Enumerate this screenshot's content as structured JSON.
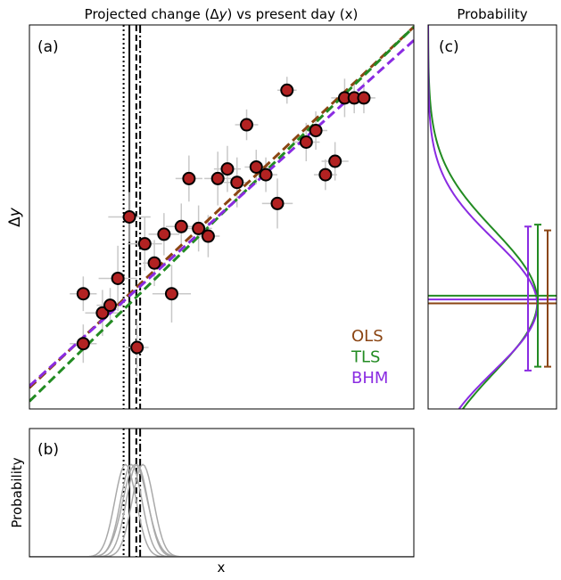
{
  "chart_data": [
    {
      "panel_id": "a",
      "panel_label": "(a)",
      "type": "scatter",
      "title": "Projected change (Δy) vs present day (x)",
      "title_prefix": "Projected change (",
      "title_delta": "Δ",
      "title_y": "y",
      "title_suffix": ") vs present day (x)",
      "ylabel_delta": "Δ",
      "ylabel_y": "y",
      "xlim": [
        0,
        10
      ],
      "ylim": [
        0,
        10
      ],
      "points": [
        {
          "x": 1.4,
          "y": 1.7,
          "xerr": 0.35,
          "yerr": 0.5
        },
        {
          "x": 1.9,
          "y": 2.5,
          "xerr": 0.45,
          "yerr": 0.6
        },
        {
          "x": 2.1,
          "y": 2.7,
          "xerr": 0.35,
          "yerr": 0.45
        },
        {
          "x": 1.4,
          "y": 3.0,
          "xerr": 0.35,
          "yerr": 0.45
        },
        {
          "x": 2.3,
          "y": 3.4,
          "xerr": 0.5,
          "yerr": 0.85
        },
        {
          "x": 2.8,
          "y": 1.6,
          "xerr": 0.3,
          "yerr": 0.75
        },
        {
          "x": 2.6,
          "y": 5.0,
          "xerr": 0.55,
          "yerr": 0.65
        },
        {
          "x": 3.0,
          "y": 4.3,
          "xerr": 0.45,
          "yerr": 0.7
        },
        {
          "x": 3.25,
          "y": 3.8,
          "xerr": 0.3,
          "yerr": 0.6
        },
        {
          "x": 3.5,
          "y": 4.55,
          "xerr": 0.4,
          "yerr": 0.55
        },
        {
          "x": 3.7,
          "y": 3.0,
          "xerr": 0.5,
          "yerr": 0.75
        },
        {
          "x": 3.95,
          "y": 4.75,
          "xerr": 0.4,
          "yerr": 0.6
        },
        {
          "x": 4.15,
          "y": 6.0,
          "xerr": 0.35,
          "yerr": 0.6
        },
        {
          "x": 4.4,
          "y": 4.7,
          "xerr": 0.35,
          "yerr": 0.6
        },
        {
          "x": 4.65,
          "y": 4.5,
          "xerr": 0.3,
          "yerr": 0.55
        },
        {
          "x": 4.9,
          "y": 6.0,
          "xerr": 0.35,
          "yerr": 0.7
        },
        {
          "x": 5.15,
          "y": 6.25,
          "xerr": 0.35,
          "yerr": 0.6
        },
        {
          "x": 5.4,
          "y": 5.9,
          "xerr": 0.35,
          "yerr": 0.65
        },
        {
          "x": 5.65,
          "y": 7.4,
          "xerr": 0.3,
          "yerr": 0.4
        },
        {
          "x": 5.9,
          "y": 6.3,
          "xerr": 0.3,
          "yerr": 0.45
        },
        {
          "x": 6.15,
          "y": 6.1,
          "xerr": 0.3,
          "yerr": 0.45
        },
        {
          "x": 6.45,
          "y": 5.35,
          "xerr": 0.4,
          "yerr": 0.65
        },
        {
          "x": 6.7,
          "y": 8.3,
          "xerr": 0.25,
          "yerr": 0.35
        },
        {
          "x": 7.2,
          "y": 6.95,
          "xerr": 0.35,
          "yerr": 0.5
        },
        {
          "x": 7.45,
          "y": 7.25,
          "xerr": 0.3,
          "yerr": 0.5
        },
        {
          "x": 7.7,
          "y": 6.1,
          "xerr": 0.3,
          "yerr": 0.4
        },
        {
          "x": 7.95,
          "y": 6.45,
          "xerr": 0.35,
          "yerr": 0.5
        },
        {
          "x": 8.2,
          "y": 8.1,
          "xerr": 0.35,
          "yerr": 0.5
        },
        {
          "x": 8.45,
          "y": 8.1,
          "xerr": 0.3,
          "yerr": 0.4
        },
        {
          "x": 8.7,
          "y": 8.1,
          "xerr": 0.3,
          "yerr": 0.4
        }
      ],
      "vertical_lines": [
        {
          "x": 2.45,
          "style": "dotted",
          "color": "#000000"
        },
        {
          "x": 2.6,
          "style": "solid",
          "color": "#000000"
        },
        {
          "x": 2.78,
          "style": "dashed",
          "color": "#000000"
        },
        {
          "x": 2.88,
          "style": "dashdot",
          "color": "#000000"
        }
      ],
      "fit_lines": [
        {
          "name": "OLS",
          "color": "#8B4513",
          "x": [
            0,
            10
          ],
          "y": [
            0.55,
            9.95
          ]
        },
        {
          "name": "TLS",
          "color": "#228B22",
          "x": [
            0,
            10
          ],
          "y": [
            0.2,
            9.95
          ]
        },
        {
          "name": "BHM",
          "color": "#8A2BE2",
          "x": [
            0,
            10
          ],
          "y": [
            0.6,
            9.6
          ]
        }
      ],
      "legend": [
        {
          "label": "OLS",
          "color": "#8B4513"
        },
        {
          "label": "TLS",
          "color": "#228B22"
        },
        {
          "label": "BHM",
          "color": "#8A2BE2"
        }
      ],
      "legend_position": "bottom-right",
      "colors": {
        "marker_fill": "#B22222",
        "marker_edge": "#000000",
        "errorbar": "#C8C8C8"
      },
      "grid": false
    },
    {
      "panel_id": "b",
      "panel_label": "(b)",
      "type": "line",
      "xlabel": "x",
      "ylabel": "Probability",
      "xlim": [
        0,
        10
      ],
      "ylim": [
        0,
        1
      ],
      "curves": [
        {
          "mean": 2.5,
          "sd": 0.28
        },
        {
          "mean": 2.65,
          "sd": 0.28
        },
        {
          "mean": 2.8,
          "sd": 0.28
        },
        {
          "mean": 2.95,
          "sd": 0.28
        },
        {
          "mean": 2.75,
          "sd": 0.32
        }
      ],
      "curve_peak": 0.72,
      "vertical_lines": [
        {
          "x": 2.45,
          "style": "dotted"
        },
        {
          "x": 2.6,
          "style": "solid"
        },
        {
          "x": 2.78,
          "style": "dashed"
        },
        {
          "x": 2.88,
          "style": "dashdot"
        }
      ],
      "colors": {
        "curves": "#A9A9A9"
      },
      "grid": false
    },
    {
      "panel_id": "c",
      "panel_label": "(c)",
      "type": "line",
      "title": "Probability",
      "orientation": "horizontal",
      "ylim": [
        0,
        10
      ],
      "xlim": [
        0,
        1
      ],
      "distributions": [
        {
          "name": "TLS",
          "color": "#228B22",
          "mean": 2.8,
          "sd": 1.85,
          "peak": 0.85
        },
        {
          "name": "BHM",
          "color": "#8A2BE2",
          "mean": 2.7,
          "sd": 1.7,
          "peak": 0.85
        }
      ],
      "mean_lines": [
        {
          "color": "#228B22",
          "y": 2.95
        },
        {
          "color": "#8A2BE2",
          "y": 2.85
        },
        {
          "color": "#8B4513",
          "y": 2.75
        }
      ],
      "intervals": [
        {
          "color": "#8A2BE2",
          "low": 1.0,
          "high": 4.75
        },
        {
          "color": "#228B22",
          "low": 1.1,
          "high": 4.8
        },
        {
          "color": "#8B4513",
          "low": 1.1,
          "high": 4.65
        }
      ],
      "grid": false
    }
  ]
}
